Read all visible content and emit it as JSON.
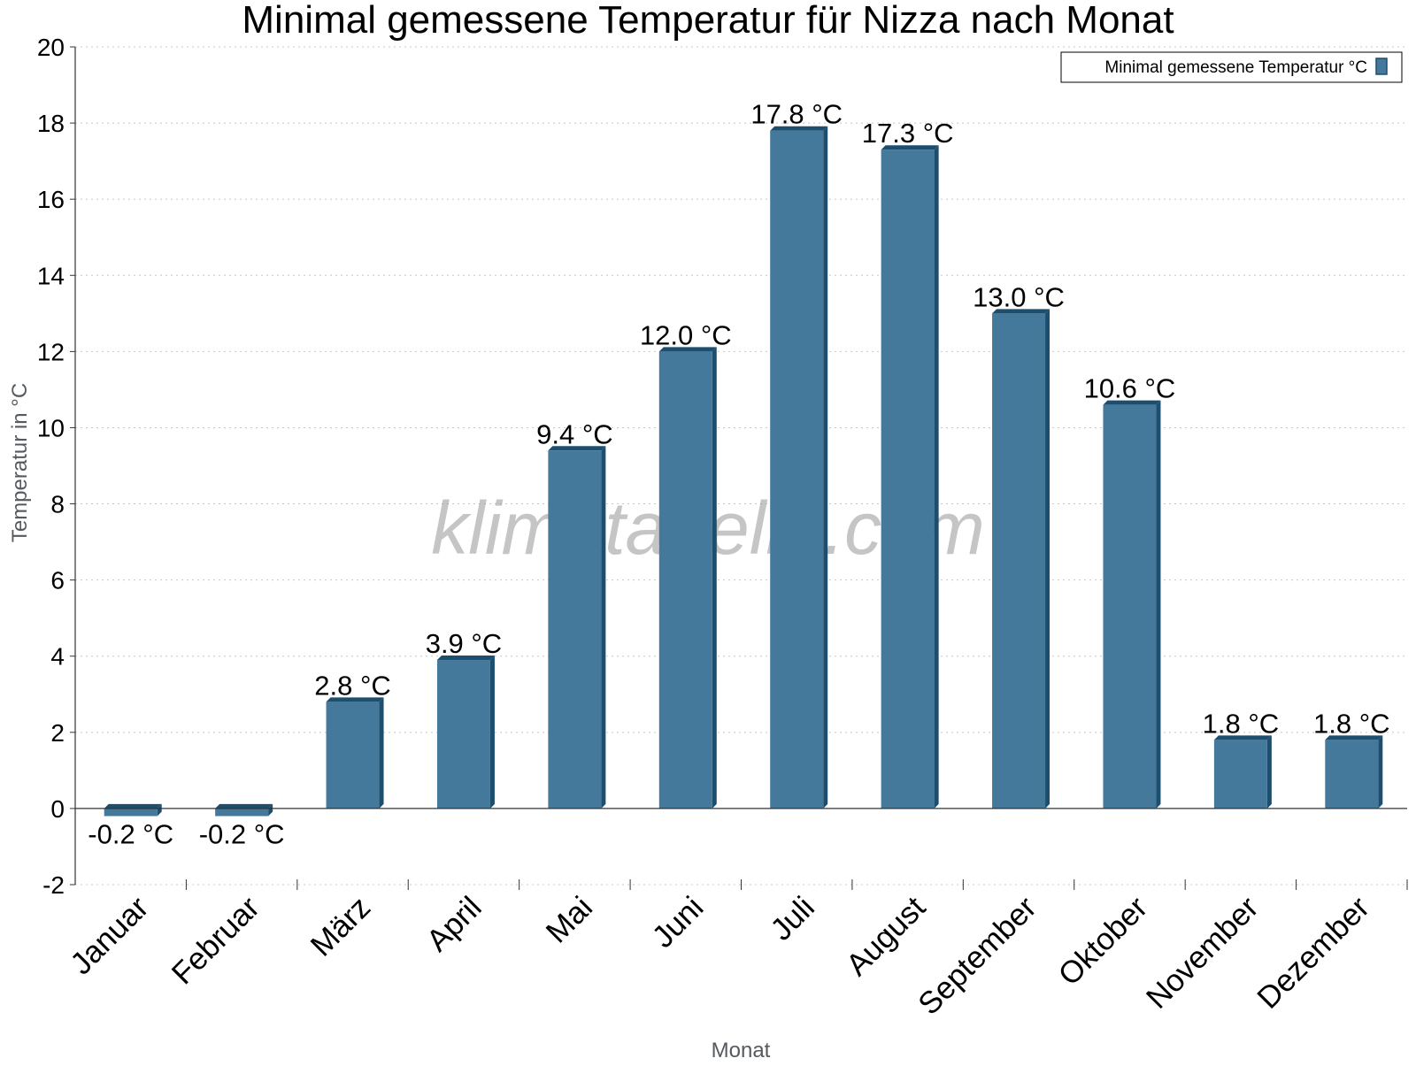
{
  "chart_data": {
    "type": "bar",
    "title": "Minimal gemessene Temperatur für Nizza nach Monat",
    "xlabel": "Monat",
    "ylabel": "Temperatur in °C",
    "categories": [
      "Januar",
      "Februar",
      "März",
      "April",
      "Mai",
      "Juni",
      "Juli",
      "August",
      "September",
      "Oktober",
      "November",
      "Dezember"
    ],
    "series": [
      {
        "name": "Minimal gemessene Temperatur °C",
        "values": [
          -0.2,
          -0.2,
          2.8,
          3.9,
          9.4,
          12.0,
          17.8,
          17.3,
          13.0,
          10.6,
          1.8,
          1.8
        ],
        "data_labels": [
          "-0.2 °C",
          "-0.2 °C",
          "2.8 °C",
          "3.9 °C",
          "9.4 °C",
          "12.0 °C",
          "17.8 °C",
          "17.3 °C",
          "13.0 °C",
          "10.6 °C",
          "1.8 °C",
          "1.8 °C"
        ],
        "color": "#44799c",
        "edge_color": "#1d4e6e"
      }
    ],
    "ylim": [
      -2,
      20
    ],
    "yticks": [
      "-2",
      "0",
      "2",
      "4",
      "6",
      "8",
      "10",
      "12",
      "14",
      "16",
      "18",
      "20"
    ],
    "grid": true,
    "legend_position": "top-right",
    "watermark": "klimatabelle.com"
  }
}
